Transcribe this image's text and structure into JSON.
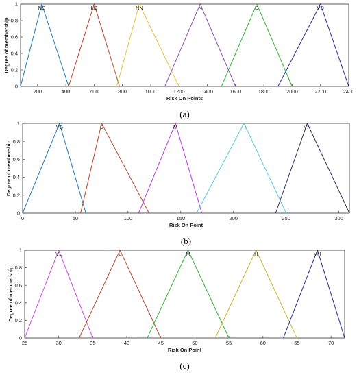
{
  "chart_data": [
    {
      "type": "line",
      "panel_label": "(a)",
      "xlabel": "Risk On Points",
      "ylabel": "Degree of membership",
      "xlim": [
        80,
        2400
      ],
      "ylim": [
        0,
        1
      ],
      "xticks": [
        200,
        400,
        600,
        800,
        1000,
        1200,
        1400,
        1600,
        1800,
        2000,
        2200,
        2400
      ],
      "yticks": [
        0,
        0.2,
        0.4,
        0.6,
        0.8,
        1
      ],
      "series": [
        {
          "name": "NS",
          "color": "#1f77b4",
          "x": [
            80,
            230,
            420
          ],
          "y": [
            0,
            1,
            0
          ]
        },
        {
          "name": "LD",
          "color": "#b5462a",
          "x": [
            420,
            600,
            780
          ],
          "y": [
            0,
            1,
            0
          ]
        },
        {
          "name": "NN",
          "color": "#e3c23a",
          "x": [
            760,
            920,
            1200
          ],
          "y": [
            0,
            1,
            0
          ]
        },
        {
          "name": "N",
          "color": "#8a4fb3",
          "x": [
            1100,
            1350,
            1600
          ],
          "y": [
            0,
            1,
            0
          ]
        },
        {
          "name": "D",
          "color": "#33b233",
          "x": [
            1500,
            1750,
            2000
          ],
          "y": [
            0,
            1,
            0
          ]
        },
        {
          "name": "VD",
          "color": "#1f2a8c",
          "x": [
            1900,
            2200,
            2400
          ],
          "y": [
            0,
            1,
            0
          ]
        }
      ]
    },
    {
      "type": "line",
      "panel_label": "(b)",
      "xlabel": "Risk On Point",
      "ylabel": "Degree of membership",
      "xlim": [
        0,
        310
      ],
      "ylim": [
        0,
        1
      ],
      "xticks": [
        0,
        50,
        100,
        150,
        200,
        250,
        300
      ],
      "yticks": [
        0,
        0.2,
        0.4,
        0.6,
        0.8,
        1
      ],
      "series": [
        {
          "name": "VS",
          "color": "#1f77b4",
          "x": [
            0,
            35,
            60
          ],
          "y": [
            0,
            1,
            0
          ]
        },
        {
          "name": "S",
          "color": "#b5462a",
          "x": [
            55,
            75,
            120
          ],
          "y": [
            0,
            1,
            0
          ]
        },
        {
          "name": "M",
          "color": "#b23cd8",
          "x": [
            110,
            145,
            170
          ],
          "y": [
            0,
            1,
            0
          ]
        },
        {
          "name": "H",
          "color": "#56c7e0",
          "x": [
            165,
            210,
            250
          ],
          "y": [
            0,
            1,
            0
          ]
        },
        {
          "name": "VH",
          "color": "#2a2a5a",
          "x": [
            240,
            270,
            310
          ],
          "y": [
            0,
            1,
            0
          ]
        }
      ]
    },
    {
      "type": "line",
      "panel_label": "(c)",
      "xlabel": "Risk On Point",
      "ylabel": "Degree of membership",
      "xlim": [
        25,
        72
      ],
      "ylim": [
        0,
        1
      ],
      "xticks": [
        25,
        30,
        35,
        40,
        45,
        50,
        55,
        60,
        65,
        70
      ],
      "yticks": [
        0,
        0.2,
        0.4,
        0.6,
        0.8,
        1
      ],
      "series": [
        {
          "name": "VL",
          "color": "#c24fd6",
          "x": [
            25,
            30,
            35
          ],
          "y": [
            0,
            1,
            0
          ]
        },
        {
          "name": "L",
          "color": "#b5462a",
          "x": [
            33,
            39,
            45
          ],
          "y": [
            0,
            1,
            0
          ]
        },
        {
          "name": "M",
          "color": "#33b233",
          "x": [
            43,
            49,
            55
          ],
          "y": [
            0,
            1,
            0
          ]
        },
        {
          "name": "H",
          "color": "#c7b42c",
          "x": [
            53,
            59,
            65
          ],
          "y": [
            0,
            1,
            0
          ]
        },
        {
          "name": "VH",
          "color": "#1f2a8c",
          "x": [
            63,
            68,
            72
          ],
          "y": [
            0,
            1,
            0
          ]
        }
      ]
    }
  ]
}
